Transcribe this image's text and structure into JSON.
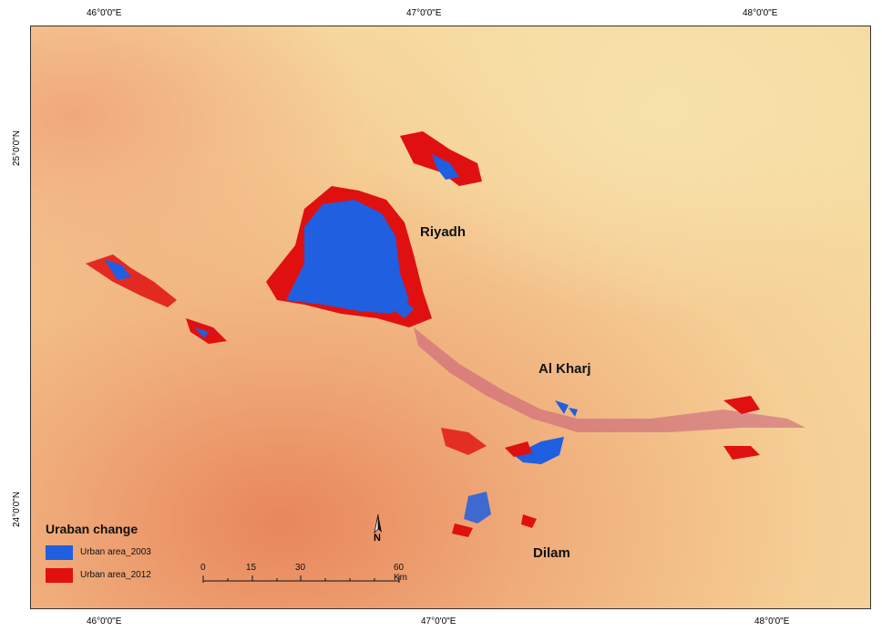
{
  "graticule": {
    "top_lon": [
      "46°0'0\"E",
      "47°0'0\"E",
      "48°0'0\"E"
    ],
    "bottom_lon": [
      "46°0'0\"E",
      "47°0'0\"E",
      "48°0'0\"E"
    ],
    "left_lat": [
      "25°0'0\"N",
      "24°0'0\"N"
    ]
  },
  "places": {
    "riyadh": "Riyadh",
    "al_kharj": "Al Kharj",
    "dilam": "Dilam"
  },
  "legend": {
    "title": "Uraban change",
    "items": [
      {
        "label": "Urban area_2003",
        "color": "#1f5fe0"
      },
      {
        "label": "Urban area_2012",
        "color": "#e01010"
      }
    ]
  },
  "scalebar": {
    "ticks": [
      "0",
      "15",
      "30",
      "60 Km"
    ]
  },
  "north_arrow": {
    "label": "N",
    "icon": "north-arrow-icon"
  },
  "colors": {
    "background_light": "#f3d79c",
    "background_dark": "#e88a5e",
    "urban_2003": "#1f5fe0",
    "urban_2012": "#e01010"
  }
}
